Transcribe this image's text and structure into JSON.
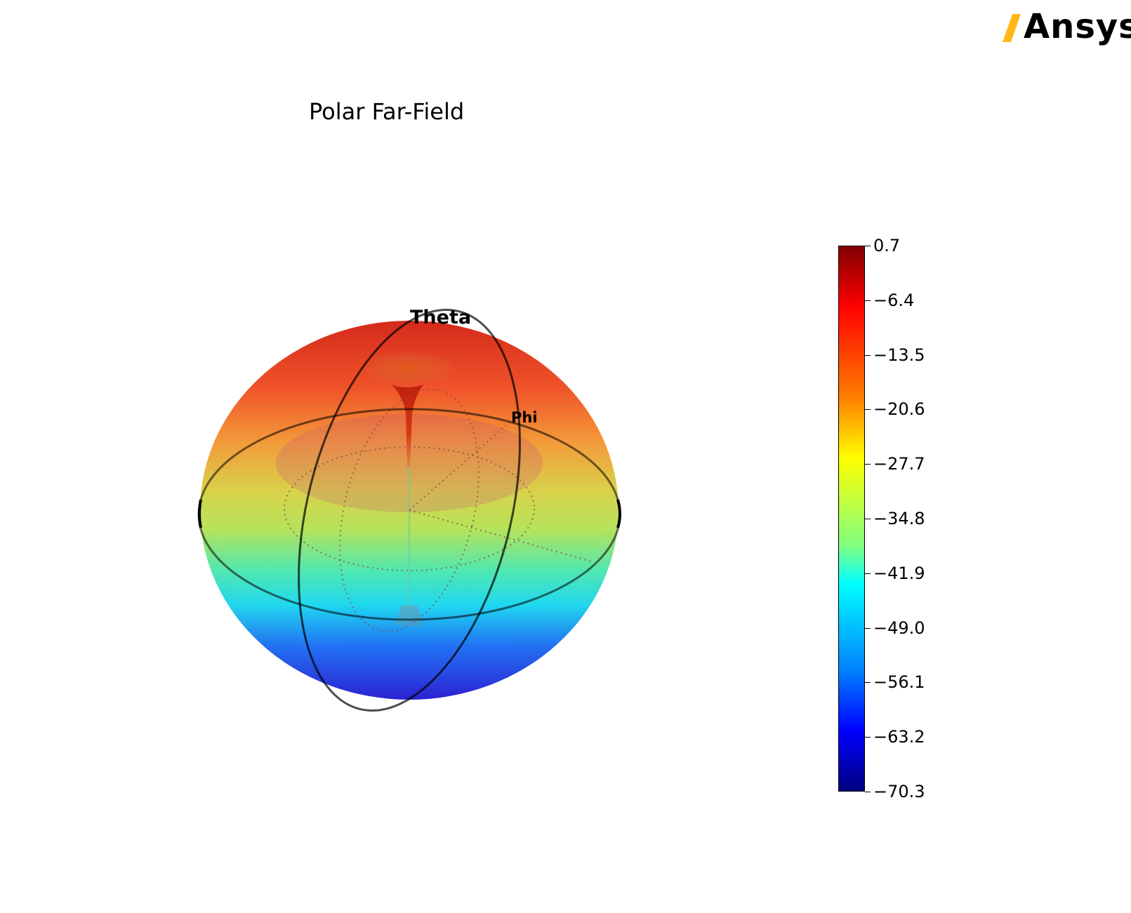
{
  "logo": {
    "text": "Ansys",
    "accent_color": "#FFB71B"
  },
  "chart_data": {
    "type": "3d-surface",
    "title": "Polar Far-Field",
    "projection": "polar-3d",
    "axis_labels": {
      "theta": "Theta",
      "phi": "Phi"
    },
    "colormap": "jet",
    "colorbar": {
      "min": -70.3,
      "max": 0.7,
      "ticks": [
        "0.7",
        "−6.4",
        "−13.5",
        "−20.6",
        "−27.7",
        "−34.8",
        "−41.9",
        "−49.0",
        "−56.1",
        "−63.2",
        "−70.3"
      ],
      "tick_values": [
        0.7,
        -6.4,
        -13.5,
        -20.6,
        -27.7,
        -34.8,
        -41.9,
        -49.0,
        -56.1,
        -63.2,
        -70.3
      ]
    },
    "surface_value_range": {
      "top": -10,
      "bottom": -65
    }
  }
}
